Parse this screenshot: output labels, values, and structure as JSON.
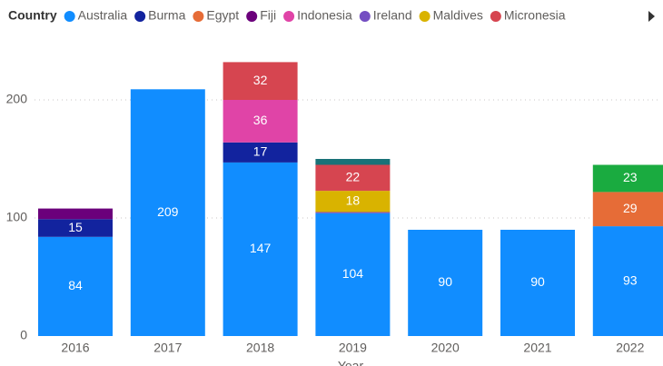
{
  "chart_data": {
    "type": "stacked_bar",
    "legend_title": "Country",
    "x_label": "Year",
    "categories": [
      "2016",
      "2017",
      "2018",
      "2019",
      "2020",
      "2021",
      "2022"
    ],
    "series": [
      {
        "name": "Australia",
        "color": "#118DFF",
        "values": [
          84,
          209,
          147,
          104,
          90,
          90,
          93
        ]
      },
      {
        "name": "Burma",
        "color": "#12239E",
        "values": [
          15,
          null,
          17,
          null,
          null,
          null,
          null
        ]
      },
      {
        "name": "Egypt",
        "color": "#E66C37",
        "values": [
          null,
          null,
          null,
          null,
          null,
          null,
          29
        ]
      },
      {
        "name": "Fiji",
        "color": "#6B007B",
        "values": [
          9,
          null,
          null,
          null,
          null,
          null,
          null
        ]
      },
      {
        "name": "Indonesia",
        "color": "#E044A7",
        "values": [
          null,
          null,
          36,
          null,
          null,
          null,
          null
        ]
      },
      {
        "name": "Ireland",
        "color": "#744EC2",
        "values": [
          null,
          null,
          null,
          1,
          null,
          null,
          null
        ]
      },
      {
        "name": "Maldives",
        "color": "#D9B300",
        "values": [
          null,
          null,
          null,
          18,
          null,
          null,
          null
        ]
      },
      {
        "name": "Micronesia",
        "color": "#D64550",
        "values": [
          null,
          null,
          32,
          22,
          null,
          null,
          null
        ]
      },
      {
        "color": "#197278",
        "values": [
          null,
          null,
          null,
          5,
          null,
          null,
          null
        ]
      },
      {
        "color": "#1AAB40",
        "values": [
          null,
          null,
          null,
          null,
          null,
          null,
          23
        ]
      }
    ],
    "ylim": [
      0,
      240
    ],
    "yticks": [
      0,
      100,
      200
    ],
    "grid": true
  }
}
